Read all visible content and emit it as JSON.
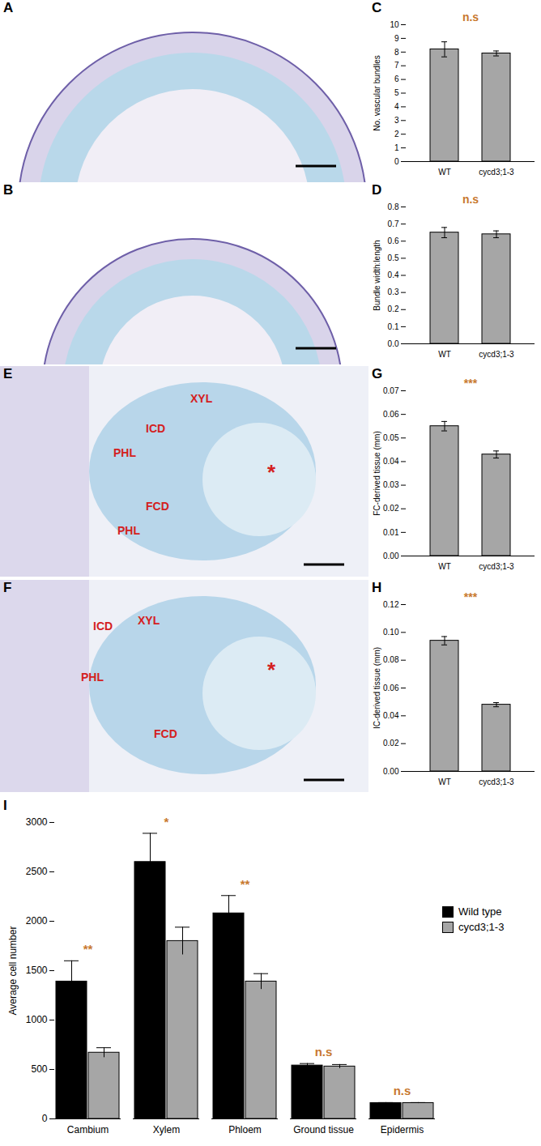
{
  "chart_data": [
    {
      "panel": "C",
      "type": "bar",
      "categories": [
        "WT",
        "cycd3;1-3"
      ],
      "values": [
        8.2,
        7.9
      ],
      "errors": [
        0.55,
        0.18
      ],
      "color": "#a6a6a6",
      "ylabel": "No. vascular bundles",
      "ylim": [
        0,
        10
      ],
      "yticks": [
        0,
        1,
        2,
        3,
        4,
        5,
        6,
        7,
        8,
        9,
        10
      ],
      "annotations": [
        "n.s"
      ]
    },
    {
      "panel": "D",
      "type": "bar",
      "categories": [
        "WT",
        "cycd3;1-3"
      ],
      "values": [
        0.65,
        0.64
      ],
      "errors": [
        0.03,
        0.02
      ],
      "color": "#a6a6a6",
      "ylabel": "Bundle width:length",
      "ylim": [
        0,
        0.8
      ],
      "yticks": [
        {
          "value": 0,
          "label": "0.0"
        },
        0.1,
        0.2,
        0.3,
        0.4,
        0.5,
        0.6,
        0.7,
        0.8
      ],
      "annotations": [
        "n.s"
      ]
    },
    {
      "panel": "G",
      "type": "bar",
      "categories": [
        "WT",
        "cycd3;1-3"
      ],
      "values": [
        0.055,
        0.043
      ],
      "errors": [
        0.002,
        0.0015
      ],
      "color": "#a6a6a6",
      "ylabel": "FC-derived tissue (mm)",
      "ylim": [
        0,
        0.07
      ],
      "yticks": [
        {
          "value": 0,
          "label": "0.00"
        },
        0.01,
        0.02,
        0.03,
        0.04,
        0.05,
        0.06,
        0.07
      ],
      "annotations": [
        "***"
      ]
    },
    {
      "panel": "H",
      "type": "bar",
      "categories": [
        "WT",
        "cycd3;1-3"
      ],
      "values": [
        0.094,
        0.048
      ],
      "errors": [
        0.003,
        0.0015
      ],
      "color": "#a6a6a6",
      "ylabel": "IC-derived tissue (mm)",
      "ylim": [
        0,
        0.12
      ],
      "yticks": [
        {
          "value": 0,
          "label": "0.00"
        },
        0.02,
        0.04,
        0.06,
        0.08,
        {
          "value": 0.1,
          "label": "0.10"
        },
        0.12
      ],
      "annotations": [
        "***"
      ]
    },
    {
      "panel": "I",
      "type": "bar",
      "categories": [
        "Cambium",
        "Xylem",
        "Phloem",
        "Ground tissue",
        "Epidermis"
      ],
      "series": [
        {
          "name": "Wild type",
          "color": "#000000",
          "values": [
            1390,
            2600,
            2080,
            540,
            160
          ],
          "errors": [
            210,
            290,
            180,
            20,
            5
          ]
        },
        {
          "name": "cycd3;1-3",
          "color": "#a6a6a6",
          "values": [
            670,
            1800,
            1390,
            530,
            160
          ],
          "errors": [
            50,
            140,
            80,
            20,
            5
          ]
        }
      ],
      "ylabel": "Average cell number",
      "ylim": [
        0,
        3000
      ],
      "yticks": [
        0,
        500,
        1000,
        1500,
        2000,
        2500,
        3000
      ],
      "legend": "right",
      "annotations": [
        "**",
        "*",
        "**",
        "n.s",
        "n.s"
      ]
    }
  ],
  "images": [
    {
      "panel": "A",
      "labels": []
    },
    {
      "panel": "B",
      "labels": []
    },
    {
      "panel": "E",
      "labels": [
        "XYL",
        "ICD",
        "PHL",
        "FCD",
        "PHL",
        "*"
      ]
    },
    {
      "panel": "F",
      "labels": [
        "XYL",
        "ICD",
        "PHL",
        "FCD",
        "*"
      ]
    }
  ]
}
